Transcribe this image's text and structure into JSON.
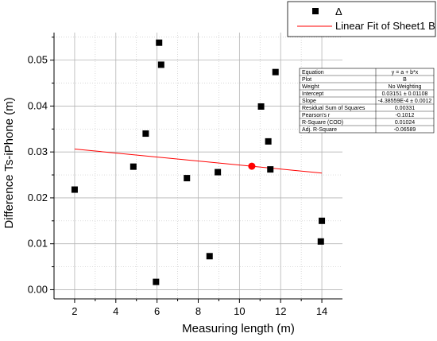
{
  "chart_data": {
    "type": "scatter",
    "xlabel": "Measuring length (m)",
    "ylabel": "Difference Ts-iPhone (m)",
    "xlim": [
      1.0,
      15.0
    ],
    "ylim": [
      -0.002,
      0.056
    ],
    "xticks": [
      2,
      4,
      6,
      8,
      10,
      12,
      14
    ],
    "yticks": [
      0.0,
      0.01,
      0.02,
      0.03,
      0.04,
      0.05
    ],
    "xtick_labels": [
      "2",
      "4",
      "6",
      "8",
      "10",
      "12",
      "14"
    ],
    "ytick_labels": [
      "0.00",
      "0.01",
      "0.02",
      "0.03",
      "0.04",
      "0.05"
    ],
    "grid": true,
    "series": [
      {
        "name": "Δ",
        "marker": "square",
        "color": "#000000",
        "points": [
          {
            "x": 2.0,
            "y": 0.0218
          },
          {
            "x": 4.85,
            "y": 0.0268
          },
          {
            "x": 5.45,
            "y": 0.034
          },
          {
            "x": 5.95,
            "y": 0.0017
          },
          {
            "x": 6.1,
            "y": 0.0538
          },
          {
            "x": 6.2,
            "y": 0.049
          },
          {
            "x": 7.45,
            "y": 0.0243
          },
          {
            "x": 8.55,
            "y": 0.0073
          },
          {
            "x": 8.95,
            "y": 0.0256
          },
          {
            "x": 11.05,
            "y": 0.0399
          },
          {
            "x": 11.4,
            "y": 0.0323
          },
          {
            "x": 11.5,
            "y": 0.0262
          },
          {
            "x": 11.75,
            "y": 0.0474
          },
          {
            "x": 13.95,
            "y": 0.0105
          },
          {
            "x": 14.0,
            "y": 0.015
          }
        ]
      },
      {
        "name": "Linear Fit of Sheet1 B",
        "type": "line",
        "color": "#ff0000",
        "points": [
          {
            "x": 2.0,
            "y": 0.03064
          },
          {
            "x": 14.0,
            "y": 0.0254
          }
        ]
      }
    ],
    "highlight_point": {
      "x": 10.6,
      "y": 0.0269,
      "color": "#ff0000"
    },
    "legend": {
      "position": "top-right",
      "entries": [
        {
          "label": "Δ",
          "symbol": "square"
        },
        {
          "label": "Linear Fit of Sheet1 B",
          "symbol": "line"
        }
      ]
    },
    "stats_table": {
      "rows": [
        [
          "Equation",
          "y = a + b*x"
        ],
        [
          "Plot",
          "B"
        ],
        [
          "Weight",
          "No Weighting"
        ],
        [
          "Intercept",
          "0.03151 ± 0.01108"
        ],
        [
          "Slope",
          "-4.38559E-4 ± 0.0012"
        ],
        [
          "Residual Sum of Squares",
          "0.00331"
        ],
        [
          "Pearson's r",
          "-0.1012"
        ],
        [
          "R-Square (COD)",
          "0.01024"
        ],
        [
          "Adj. R-Square",
          "-0.06589"
        ]
      ]
    }
  }
}
